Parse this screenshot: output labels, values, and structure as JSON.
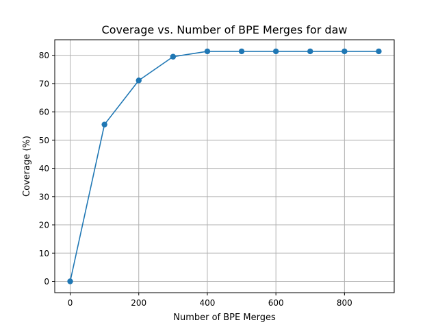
{
  "chart_data": {
    "type": "line",
    "title": "Coverage vs. Number of BPE Merges for daw",
    "xlabel": "Number of BPE Merges",
    "ylabel": "Coverage (%)",
    "x": [
      0,
      100,
      200,
      300,
      400,
      500,
      600,
      700,
      800,
      900
    ],
    "series": [
      {
        "values": [
          0.0,
          55.5,
          71.1,
          79.5,
          81.4,
          81.4,
          81.4,
          81.4,
          81.4,
          81.4
        ],
        "color": "#1f77b4",
        "marker": "circle"
      }
    ],
    "xlim": [
      -45,
      945
    ],
    "ylim": [
      -4,
      85.5
    ],
    "xticks": [
      0,
      200,
      400,
      600,
      800
    ],
    "yticks": [
      0,
      10,
      20,
      30,
      40,
      50,
      60,
      70,
      80
    ],
    "grid": true,
    "legend": "none"
  }
}
